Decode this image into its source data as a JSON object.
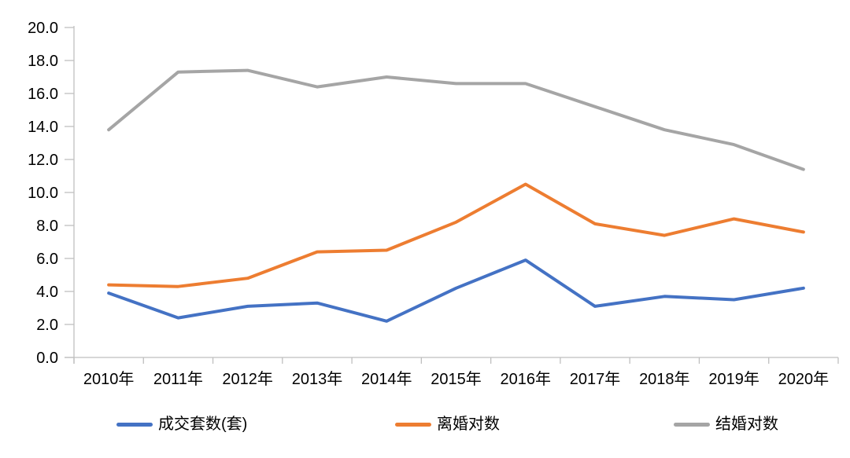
{
  "figure": {
    "background": "#FFFFFF"
  },
  "axes": {
    "line_color": "#BFBFBF",
    "text_color": "#000000"
  },
  "chart_data": {
    "type": "line",
    "title": "",
    "categories": [
      "2010年",
      "2011年",
      "2012年",
      "2013年",
      "2014年",
      "2015年",
      "2016年",
      "2017年",
      "2018年",
      "2019年",
      "2020年"
    ],
    "series": [
      {
        "key": "deals",
        "name": "成交套数(套)",
        "color": "#4472C4",
        "values": [
          3.9,
          2.4,
          3.1,
          3.3,
          2.2,
          4.2,
          5.9,
          3.1,
          3.7,
          3.5,
          4.2
        ]
      },
      {
        "key": "divorces",
        "name": "离婚对数",
        "color": "#ED7D31",
        "values": [
          4.4,
          4.3,
          4.8,
          6.4,
          6.5,
          8.2,
          10.5,
          8.1,
          7.4,
          8.4,
          7.6
        ]
      },
      {
        "key": "marriages",
        "name": "结婚对数",
        "color": "#A5A5A5",
        "values": [
          13.8,
          17.3,
          17.4,
          16.4,
          17.0,
          16.6,
          16.6,
          15.2,
          13.8,
          12.9,
          11.4
        ]
      }
    ],
    "ylim": [
      0,
      20
    ],
    "ytick_step": 2,
    "ytick_labels": [
      "0.0",
      "2.0",
      "4.0",
      "6.0",
      "8.0",
      "10.0",
      "12.0",
      "14.0",
      "16.0",
      "18.0",
      "20.0"
    ],
    "grid": false,
    "legend_position": "bottom"
  }
}
